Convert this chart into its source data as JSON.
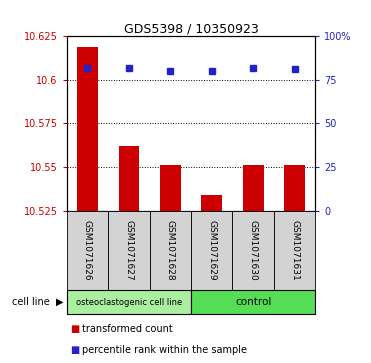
{
  "title": "GDS5398 / 10350923",
  "samples": [
    "GSM1071626",
    "GSM1071627",
    "GSM1071628",
    "GSM1071629",
    "GSM1071630",
    "GSM1071631"
  ],
  "red_values": [
    10.619,
    10.562,
    10.551,
    10.534,
    10.551,
    10.551
  ],
  "blue_values": [
    82,
    82,
    80,
    80,
    82,
    81
  ],
  "ylim_left": [
    10.525,
    10.625
  ],
  "ylim_right": [
    0,
    100
  ],
  "yticks_left": [
    10.525,
    10.55,
    10.575,
    10.6,
    10.625
  ],
  "yticks_right": [
    0,
    25,
    50,
    75,
    100
  ],
  "ytick_labels_left": [
    "10.525",
    "10.55",
    "10.575",
    "10.6",
    "10.625"
  ],
  "ytick_labels_right": [
    "0",
    "25",
    "50",
    "75",
    "100%"
  ],
  "bar_color": "#cc0000",
  "dot_color": "#2222cc",
  "bar_bottom": 10.525,
  "label_box_color": "#d3d3d3",
  "green_light": "#90ee90",
  "green_dark": "#44cc44",
  "legend_items": [
    {
      "color": "#cc0000",
      "label": "transformed count"
    },
    {
      "color": "#2222cc",
      "label": "percentile rank within the sample"
    }
  ],
  "group1_label": "osteoclastogenic cell line",
  "group2_label": "control",
  "cell_line_text": "cell line",
  "figsize": [
    3.71,
    3.63
  ],
  "dpi": 100
}
